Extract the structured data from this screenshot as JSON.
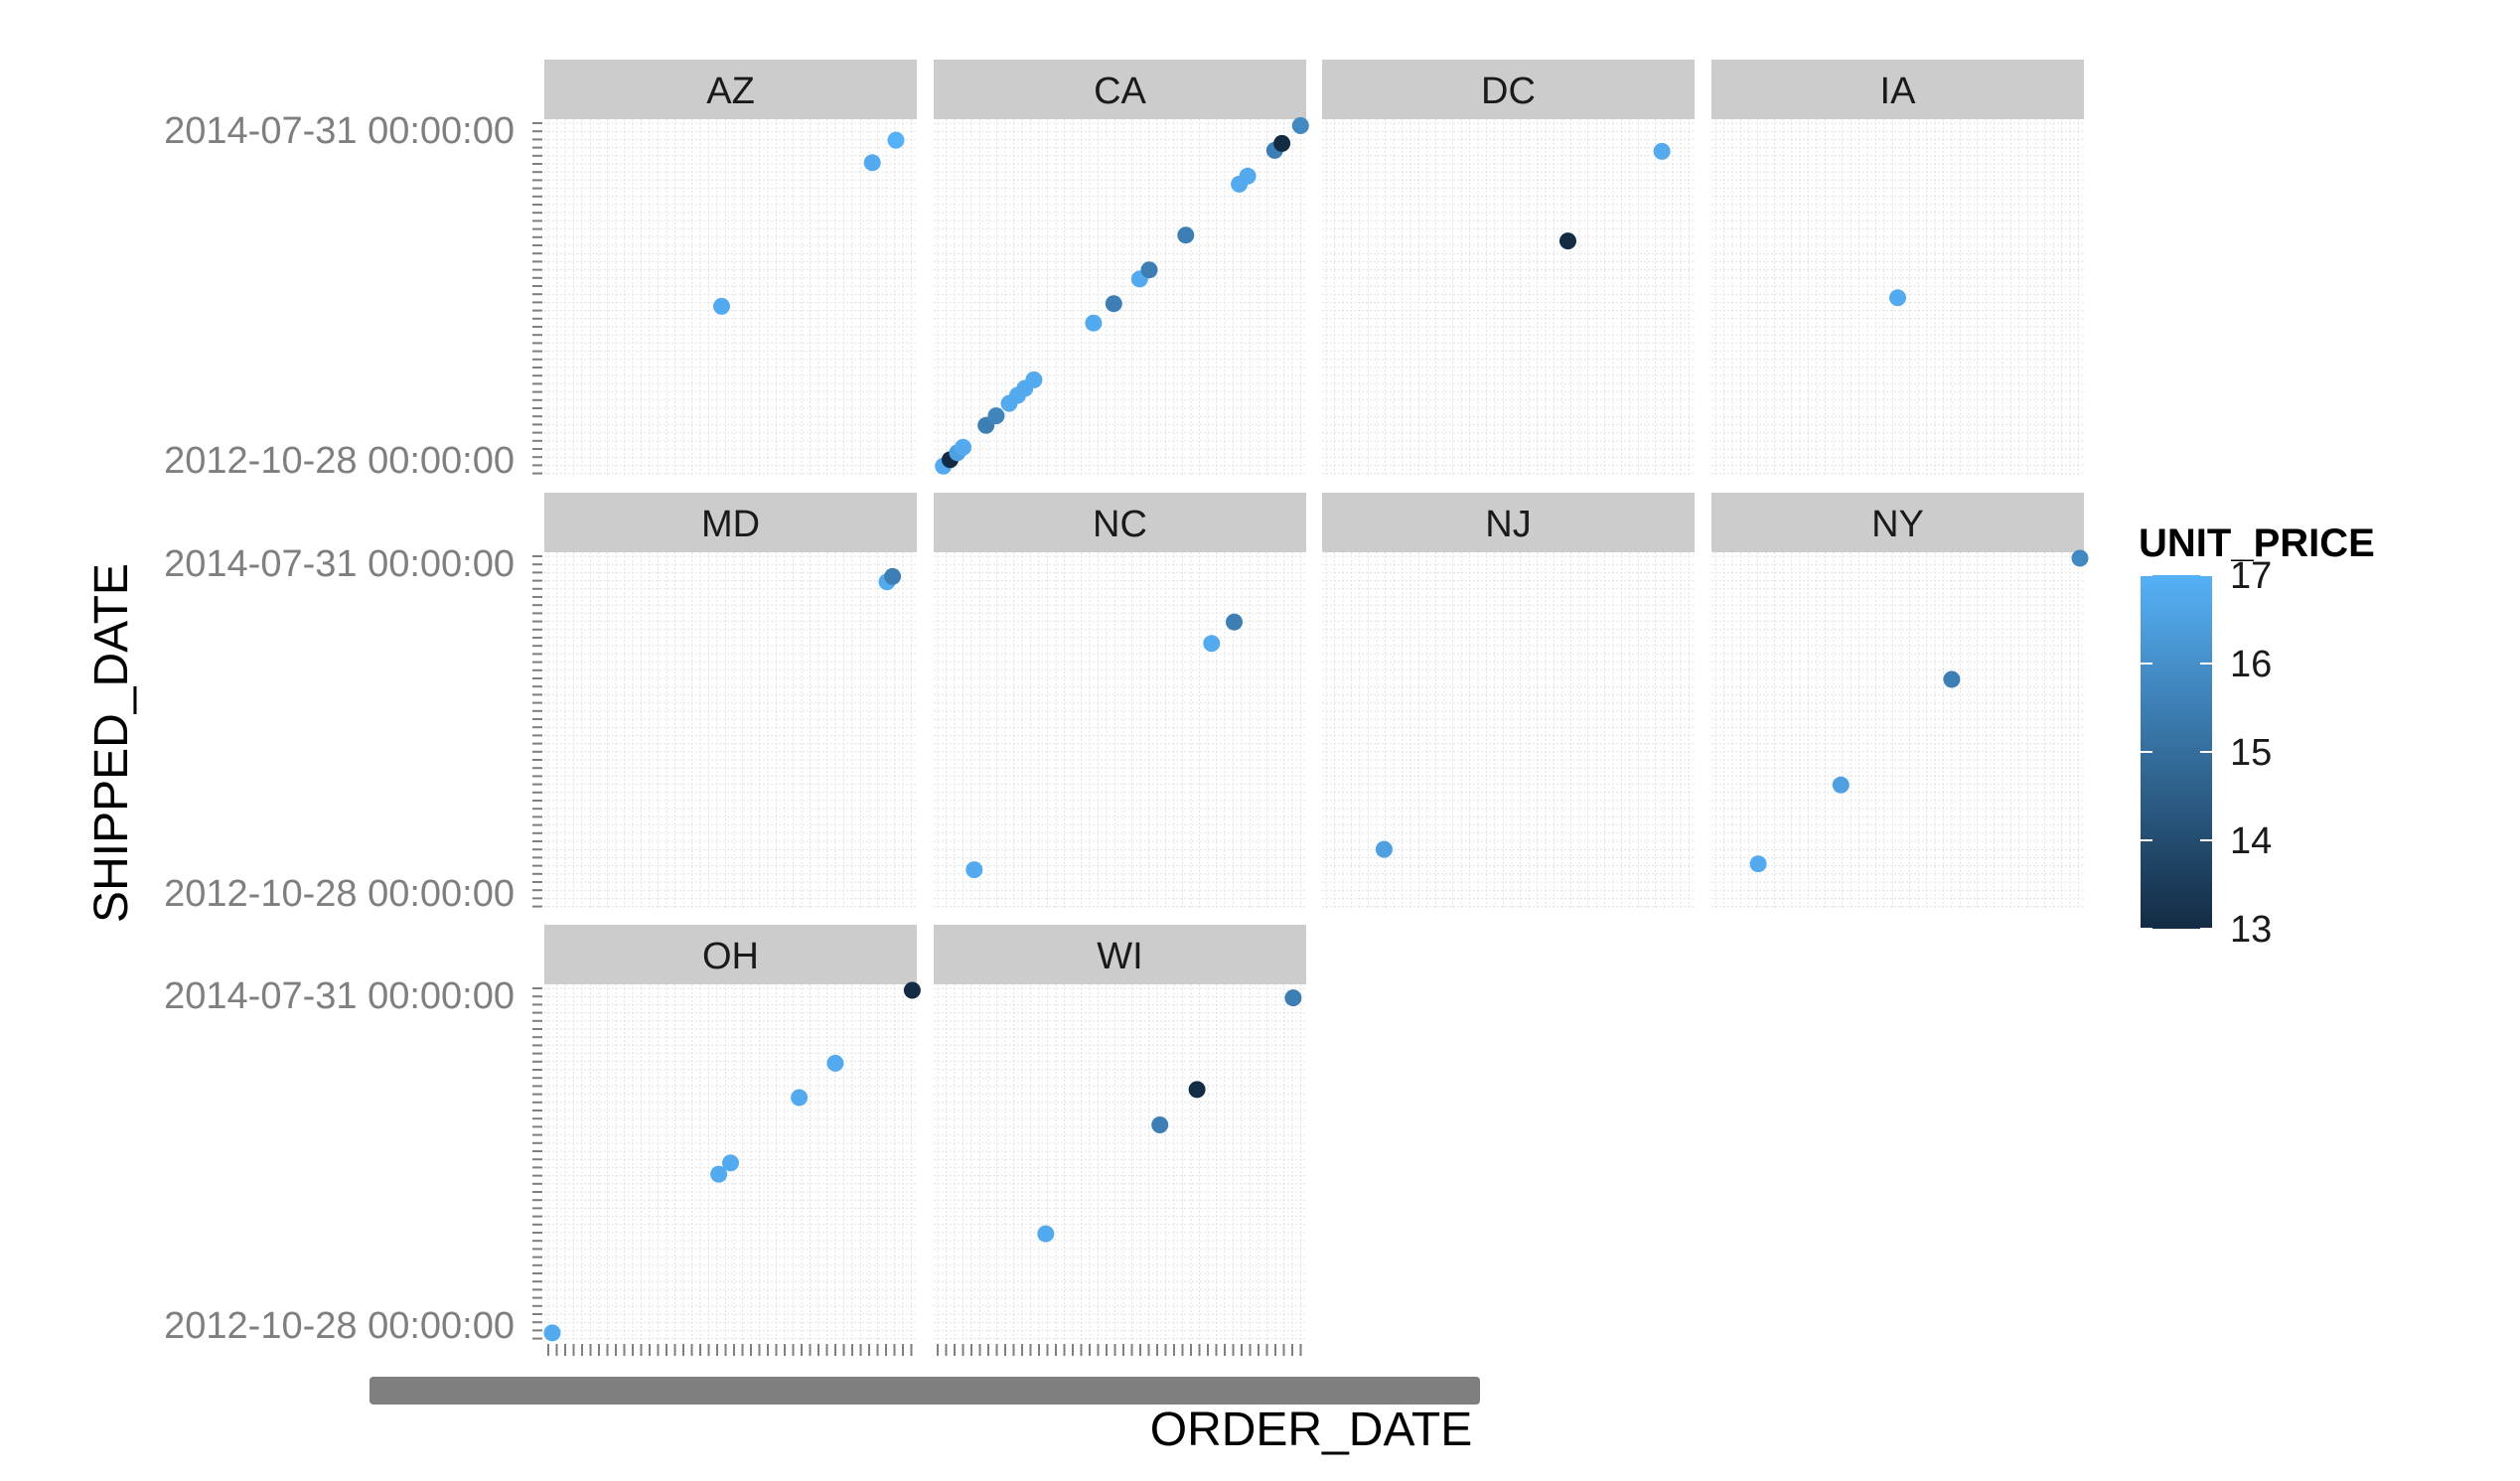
{
  "chart_data": {
    "type": "scatter",
    "facet_by": "state",
    "xlabel": "ORDER_DATE",
    "ylabel": "SHIPPED_DATE",
    "color_variable": "UNIT_PRICE",
    "color_range": [
      13,
      17
    ],
    "color_low": "#132B43",
    "color_high": "#56B1F7",
    "legend_ticks": [
      17,
      16,
      15,
      14,
      13
    ],
    "legend_position": "right",
    "grid": true,
    "y_tick_labels_visible": [
      "2014-07-31 00:00:00",
      "2012-10-28 00:00:00"
    ],
    "y_range": [
      "2012-10-28",
      "2014-07-31"
    ],
    "x_range": [
      "2012-10-28",
      "2014-07-31"
    ],
    "panels": [
      {
        "state": "AZ",
        "points": [
          {
            "order_date": "2013-08-25",
            "shipped_date": "2013-08-27",
            "unit_price": 16.8
          },
          {
            "order_date": "2014-05-20",
            "shipped_date": "2014-05-22",
            "unit_price": 16.8
          },
          {
            "order_date": "2014-07-01",
            "shipped_date": "2014-07-03",
            "unit_price": 17.0
          }
        ]
      },
      {
        "state": "CA",
        "points": [
          {
            "order_date": "2012-10-31",
            "shipped_date": "2012-11-02",
            "unit_price": 16.8
          },
          {
            "order_date": "2012-11-12",
            "shipped_date": "2012-11-14",
            "unit_price": 13.0
          },
          {
            "order_date": "2012-11-25",
            "shipped_date": "2012-11-27",
            "unit_price": 16.5
          },
          {
            "order_date": "2012-12-05",
            "shipped_date": "2012-12-07",
            "unit_price": 16.8
          },
          {
            "order_date": "2013-01-15",
            "shipped_date": "2013-01-17",
            "unit_price": 15.5
          },
          {
            "order_date": "2013-02-02",
            "shipped_date": "2013-02-04",
            "unit_price": 15.7
          },
          {
            "order_date": "2013-02-25",
            "shipped_date": "2013-02-27",
            "unit_price": 16.8
          },
          {
            "order_date": "2013-03-12",
            "shipped_date": "2013-03-14",
            "unit_price": 16.8
          },
          {
            "order_date": "2013-03-25",
            "shipped_date": "2013-03-27",
            "unit_price": 16.8
          },
          {
            "order_date": "2013-04-10",
            "shipped_date": "2013-04-12",
            "unit_price": 16.8
          },
          {
            "order_date": "2013-07-25",
            "shipped_date": "2013-07-27",
            "unit_price": 16.8
          },
          {
            "order_date": "2013-08-30",
            "shipped_date": "2013-09-01",
            "unit_price": 15.5
          },
          {
            "order_date": "2013-10-15",
            "shipped_date": "2013-10-17",
            "unit_price": 16.8
          },
          {
            "order_date": "2013-11-01",
            "shipped_date": "2013-11-03",
            "unit_price": 15.5
          },
          {
            "order_date": "2014-01-05",
            "shipped_date": "2014-01-07",
            "unit_price": 15.5
          },
          {
            "order_date": "2014-04-10",
            "shipped_date": "2014-04-12",
            "unit_price": 16.8
          },
          {
            "order_date": "2014-04-25",
            "shipped_date": "2014-04-27",
            "unit_price": 16.8
          },
          {
            "order_date": "2014-06-12",
            "shipped_date": "2014-06-14",
            "unit_price": 15.5
          },
          {
            "order_date": "2014-06-25",
            "shipped_date": "2014-06-27",
            "unit_price": 13.0
          },
          {
            "order_date": "2014-07-28",
            "shipped_date": "2014-07-30",
            "unit_price": 15.8
          }
        ]
      },
      {
        "state": "DC",
        "points": [
          {
            "order_date": "2013-12-25",
            "shipped_date": "2013-12-27",
            "unit_price": 13.0
          },
          {
            "order_date": "2014-06-10",
            "shipped_date": "2014-06-12",
            "unit_price": 16.8
          }
        ]
      },
      {
        "state": "IA",
        "points": [
          {
            "order_date": "2013-09-10",
            "shipped_date": "2013-09-12",
            "unit_price": 16.8
          }
        ]
      },
      {
        "state": "MD",
        "points": [
          {
            "order_date": "2014-06-15",
            "shipped_date": "2014-06-17",
            "unit_price": 16.8
          },
          {
            "order_date": "2014-06-25",
            "shipped_date": "2014-06-27",
            "unit_price": 15.5
          }
        ]
      },
      {
        "state": "NC",
        "points": [
          {
            "order_date": "2012-12-25",
            "shipped_date": "2012-12-27",
            "unit_price": 16.8
          },
          {
            "order_date": "2014-02-20",
            "shipped_date": "2014-02-22",
            "unit_price": 16.8
          },
          {
            "order_date": "2014-04-01",
            "shipped_date": "2014-04-03",
            "unit_price": 15.5
          }
        ]
      },
      {
        "state": "NJ",
        "points": [
          {
            "order_date": "2013-02-01",
            "shipped_date": "2013-02-03",
            "unit_price": 16.5
          }
        ]
      },
      {
        "state": "NY",
        "points": [
          {
            "order_date": "2013-01-05",
            "shipped_date": "2013-01-07",
            "unit_price": 16.8
          },
          {
            "order_date": "2013-06-01",
            "shipped_date": "2013-06-03",
            "unit_price": 16.5
          },
          {
            "order_date": "2013-12-15",
            "shipped_date": "2013-12-17",
            "unit_price": 15.5
          },
          {
            "order_date": "2014-07-31",
            "shipped_date": "2014-07-31",
            "unit_price": 15.8
          }
        ]
      },
      {
        "state": "OH",
        "points": [
          {
            "order_date": "2012-10-28",
            "shipped_date": "2012-10-30",
            "unit_price": 16.8
          },
          {
            "order_date": "2013-08-20",
            "shipped_date": "2013-08-22",
            "unit_price": 16.8
          },
          {
            "order_date": "2013-09-10",
            "shipped_date": "2013-09-12",
            "unit_price": 16.8
          },
          {
            "order_date": "2014-01-10",
            "shipped_date": "2014-01-12",
            "unit_price": 16.8
          },
          {
            "order_date": "2014-03-15",
            "shipped_date": "2014-03-17",
            "unit_price": 16.8
          },
          {
            "order_date": "2014-07-30",
            "shipped_date": "2014-07-31",
            "unit_price": 13.0
          }
        ]
      },
      {
        "state": "WI",
        "points": [
          {
            "order_date": "2013-05-01",
            "shipped_date": "2013-05-03",
            "unit_price": 16.8
          },
          {
            "order_date": "2013-11-20",
            "shipped_date": "2013-11-22",
            "unit_price": 15.5
          },
          {
            "order_date": "2014-01-25",
            "shipped_date": "2014-01-27",
            "unit_price": 13.0
          },
          {
            "order_date": "2014-07-15",
            "shipped_date": "2014-07-17",
            "unit_price": 15.5
          }
        ]
      }
    ]
  }
}
